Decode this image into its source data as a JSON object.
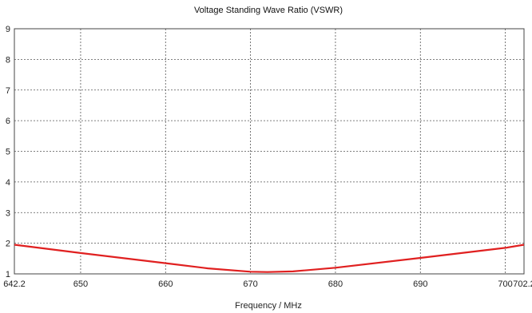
{
  "chart_data": {
    "type": "line",
    "title": "Voltage Standing Wave Ratio (VSWR)",
    "xlabel": "Frequency / MHz",
    "ylabel": "",
    "xlim": [
      642.2,
      702.2
    ],
    "ylim": [
      1,
      9
    ],
    "x_ticks": [
      "642.2",
      "650",
      "660",
      "670",
      "680",
      "690",
      "700",
      "702.2"
    ],
    "x_tick_values": [
      642.2,
      650,
      660,
      670,
      680,
      690,
      700,
      702.2
    ],
    "y_ticks": [
      "1",
      "2",
      "3",
      "4",
      "5",
      "6",
      "7",
      "8",
      "9"
    ],
    "y_tick_values": [
      1,
      2,
      3,
      4,
      5,
      6,
      7,
      8,
      9
    ],
    "grid": true,
    "series": [
      {
        "color": "#e02020",
        "x": [
          642.2,
          650,
          660,
          665,
          670,
          672,
          675,
          680,
          690,
          700,
          702.2
        ],
        "y": [
          1.95,
          1.68,
          1.35,
          1.18,
          1.07,
          1.06,
          1.08,
          1.2,
          1.52,
          1.85,
          1.95
        ]
      }
    ]
  }
}
